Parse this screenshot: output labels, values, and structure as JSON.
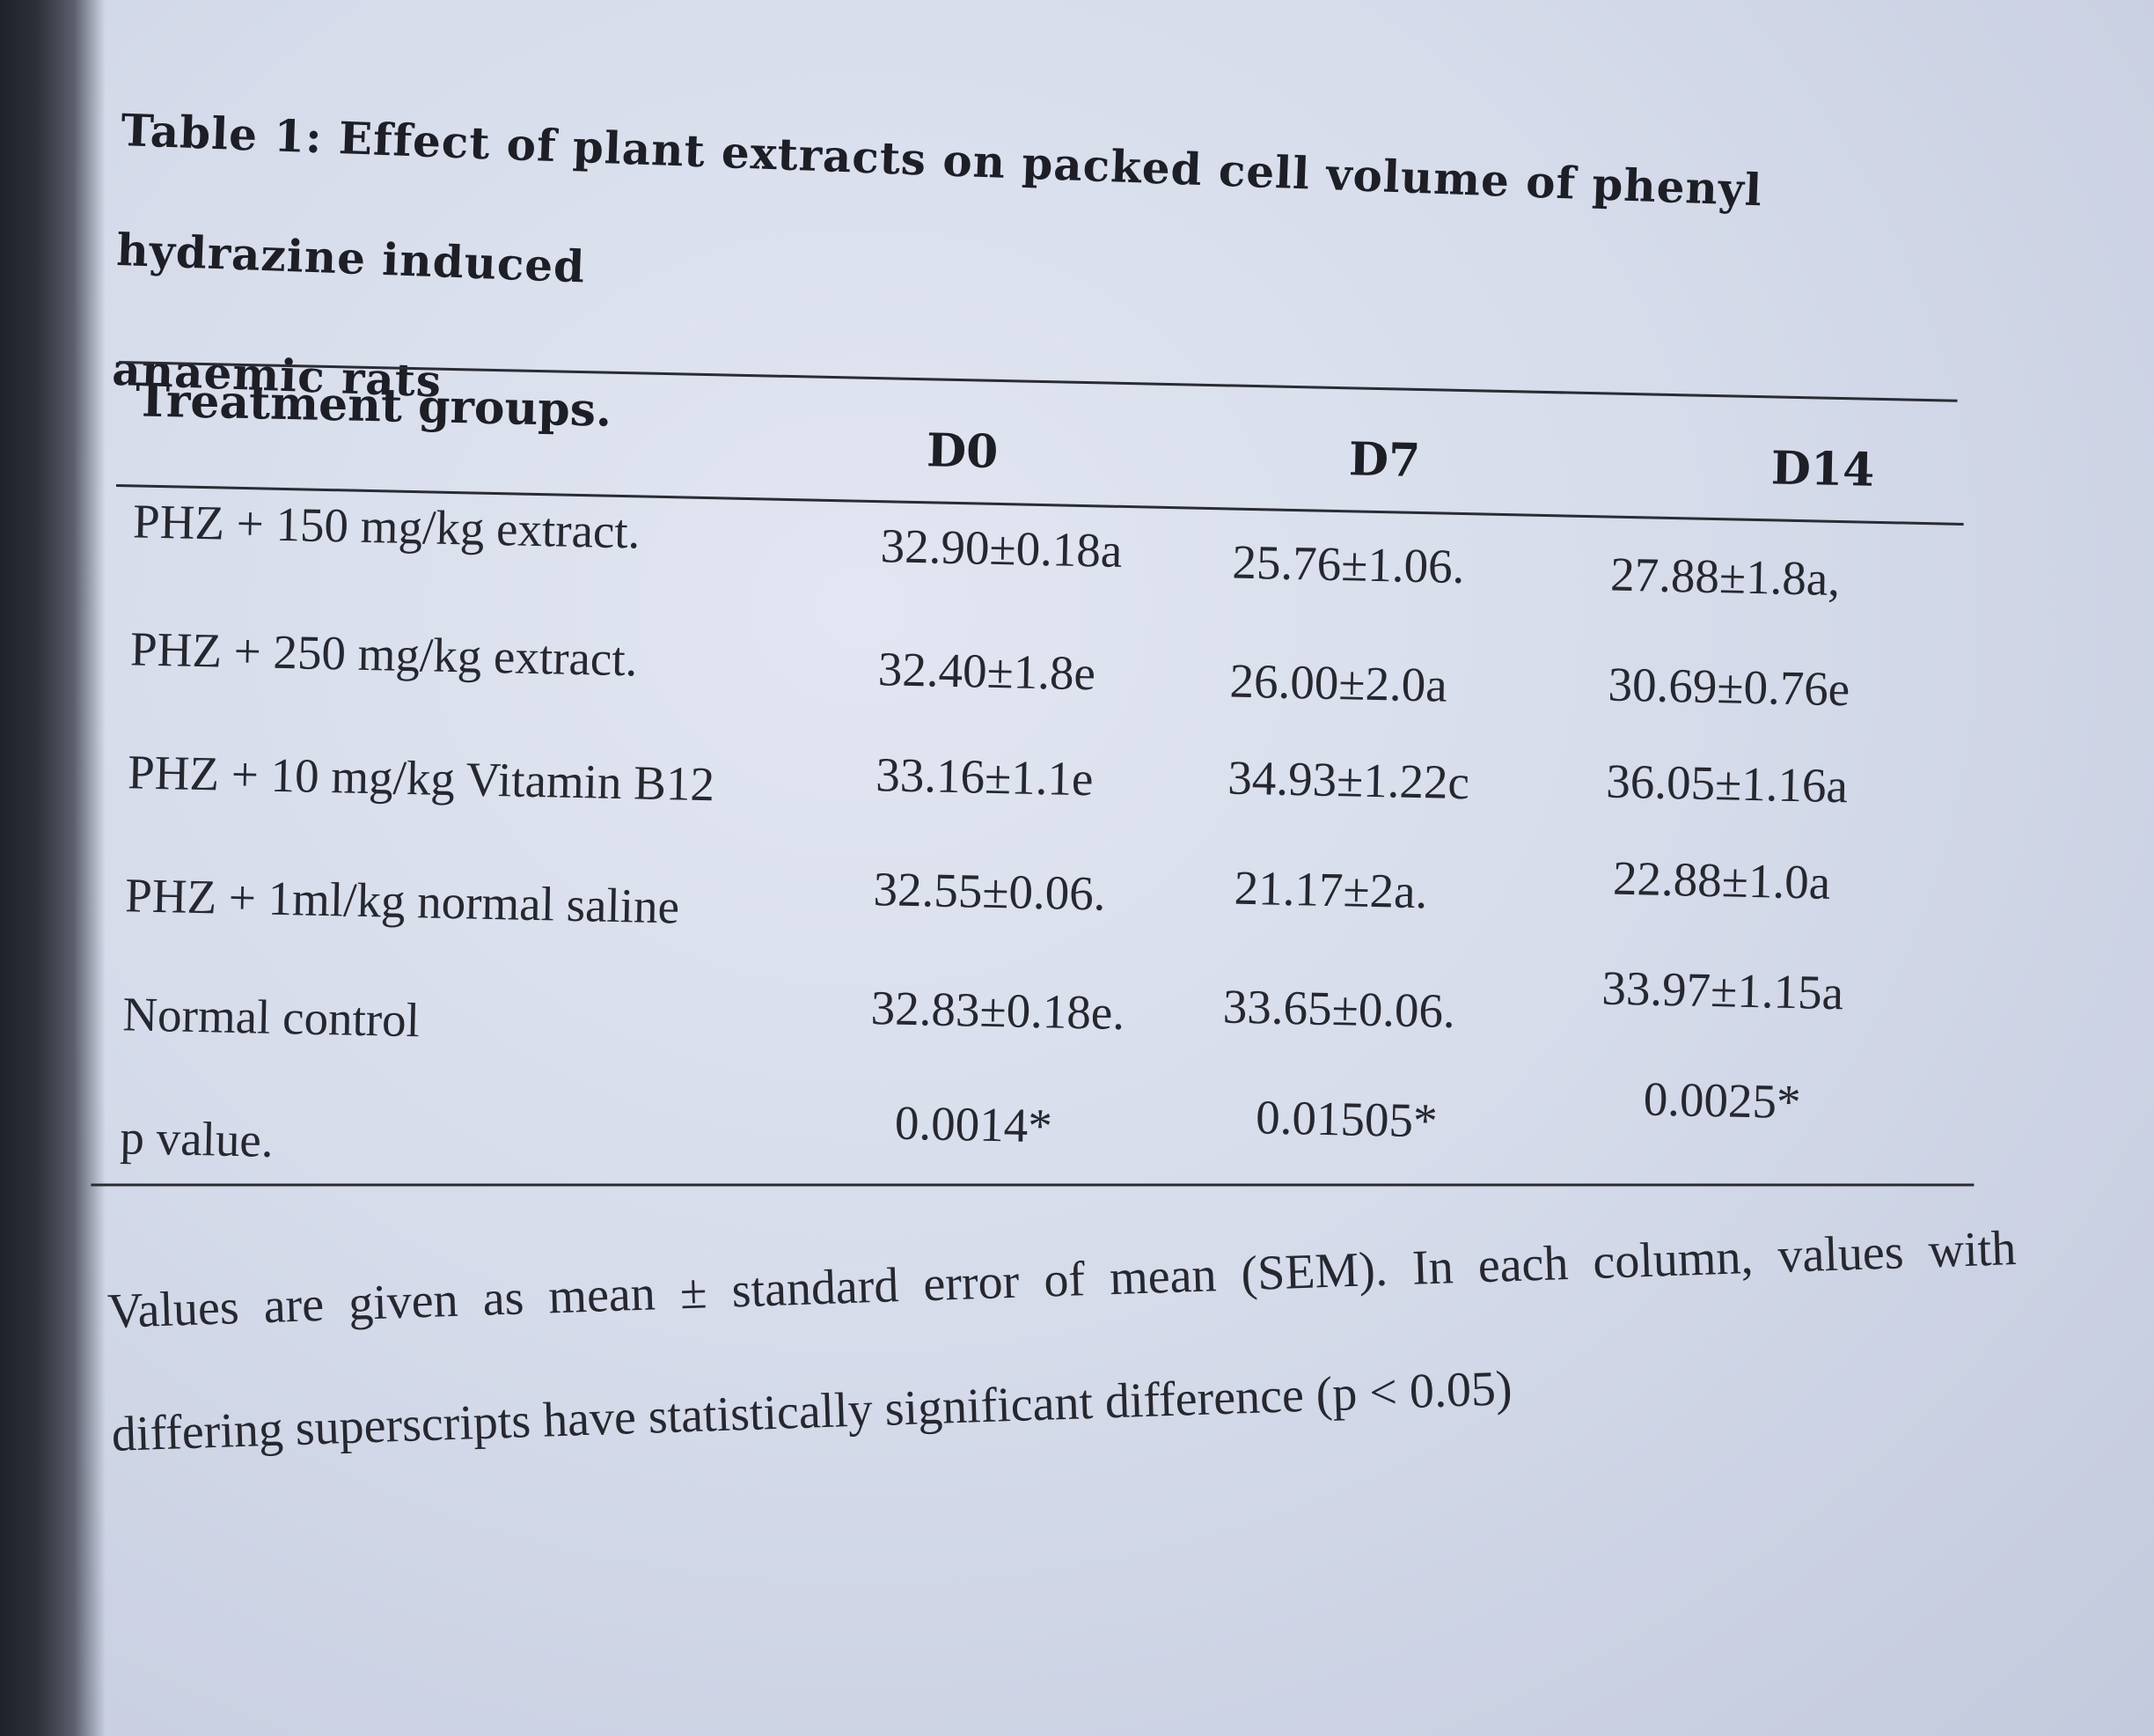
{
  "caption": {
    "line1": "Table 1: Effect of plant extracts on packed cell volume of phenyl hydrazine induced",
    "line2": "anaemic rats"
  },
  "table": {
    "headers": [
      "Treatment groups.",
      "D0",
      "D7",
      "D14"
    ],
    "rows": [
      [
        "PHZ + 150 mg/kg extract.",
        "32.90±0.18a",
        "25.76±1.06.",
        "27.88±1.8a,"
      ],
      [
        "PHZ + 250 mg/kg extract.",
        "32.40±1.8e",
        "26.00±2.0a",
        "30.69±0.76e"
      ],
      [
        "PHZ + 10 mg/kg Vitamin B12",
        "33.16±1.1e",
        "34.93±1.22c",
        "36.05±1.16a"
      ],
      [
        "PHZ + 1ml/kg normal saline",
        "32.55±0.06.",
        "21.17±2a.",
        "22.88±1.0a"
      ],
      [
        "Normal control",
        "32.83±0.18e.",
        "33.65±0.06.",
        "33.97±1.15a"
      ],
      [
        "p value.",
        "0.0014*",
        "0.01505*",
        "0.0025*"
      ]
    ]
  },
  "footnote": {
    "line1": "Values are given as mean ± standard error of mean (SEM). In each column, values with",
    "line2": "differing superscripts have statistically significant difference (p < 0.05)"
  }
}
